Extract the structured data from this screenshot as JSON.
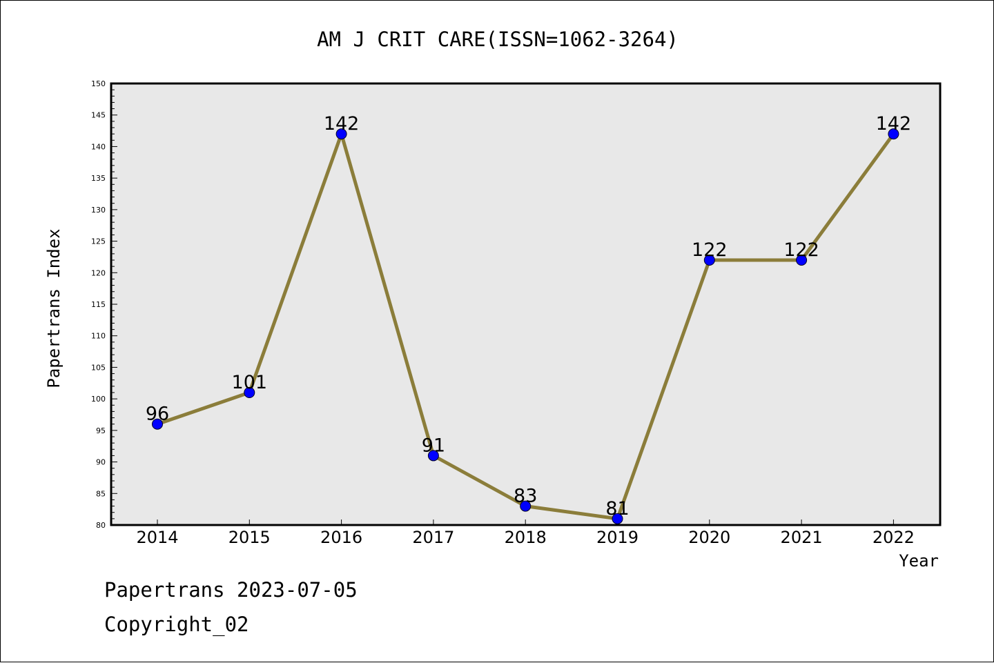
{
  "chart_data": {
    "type": "line",
    "title": "AM J CRIT CARE(ISSN=1062-3264)",
    "xlabel": "Year",
    "ylabel": "Papertrans Index",
    "categories": [
      "2014",
      "2015",
      "2016",
      "2017",
      "2018",
      "2019",
      "2020",
      "2021",
      "2022"
    ],
    "series": [
      {
        "values": [
          96,
          101,
          142,
          91,
          83,
          81,
          122,
          122,
          142
        ]
      }
    ],
    "ylim": [
      80,
      150
    ],
    "yticks": [
      80,
      85,
      90,
      95,
      100,
      105,
      110,
      115,
      120,
      125,
      130,
      135,
      140,
      145,
      150
    ],
    "grid": false,
    "legend": "none",
    "colors": {
      "line": "#8b7d3a",
      "marker": "#0000ff",
      "plot_background": "#e8e8e8"
    }
  },
  "footer": {
    "date_label": "Papertrans 2023-07-05",
    "copyright_label": "Copyright_02"
  }
}
